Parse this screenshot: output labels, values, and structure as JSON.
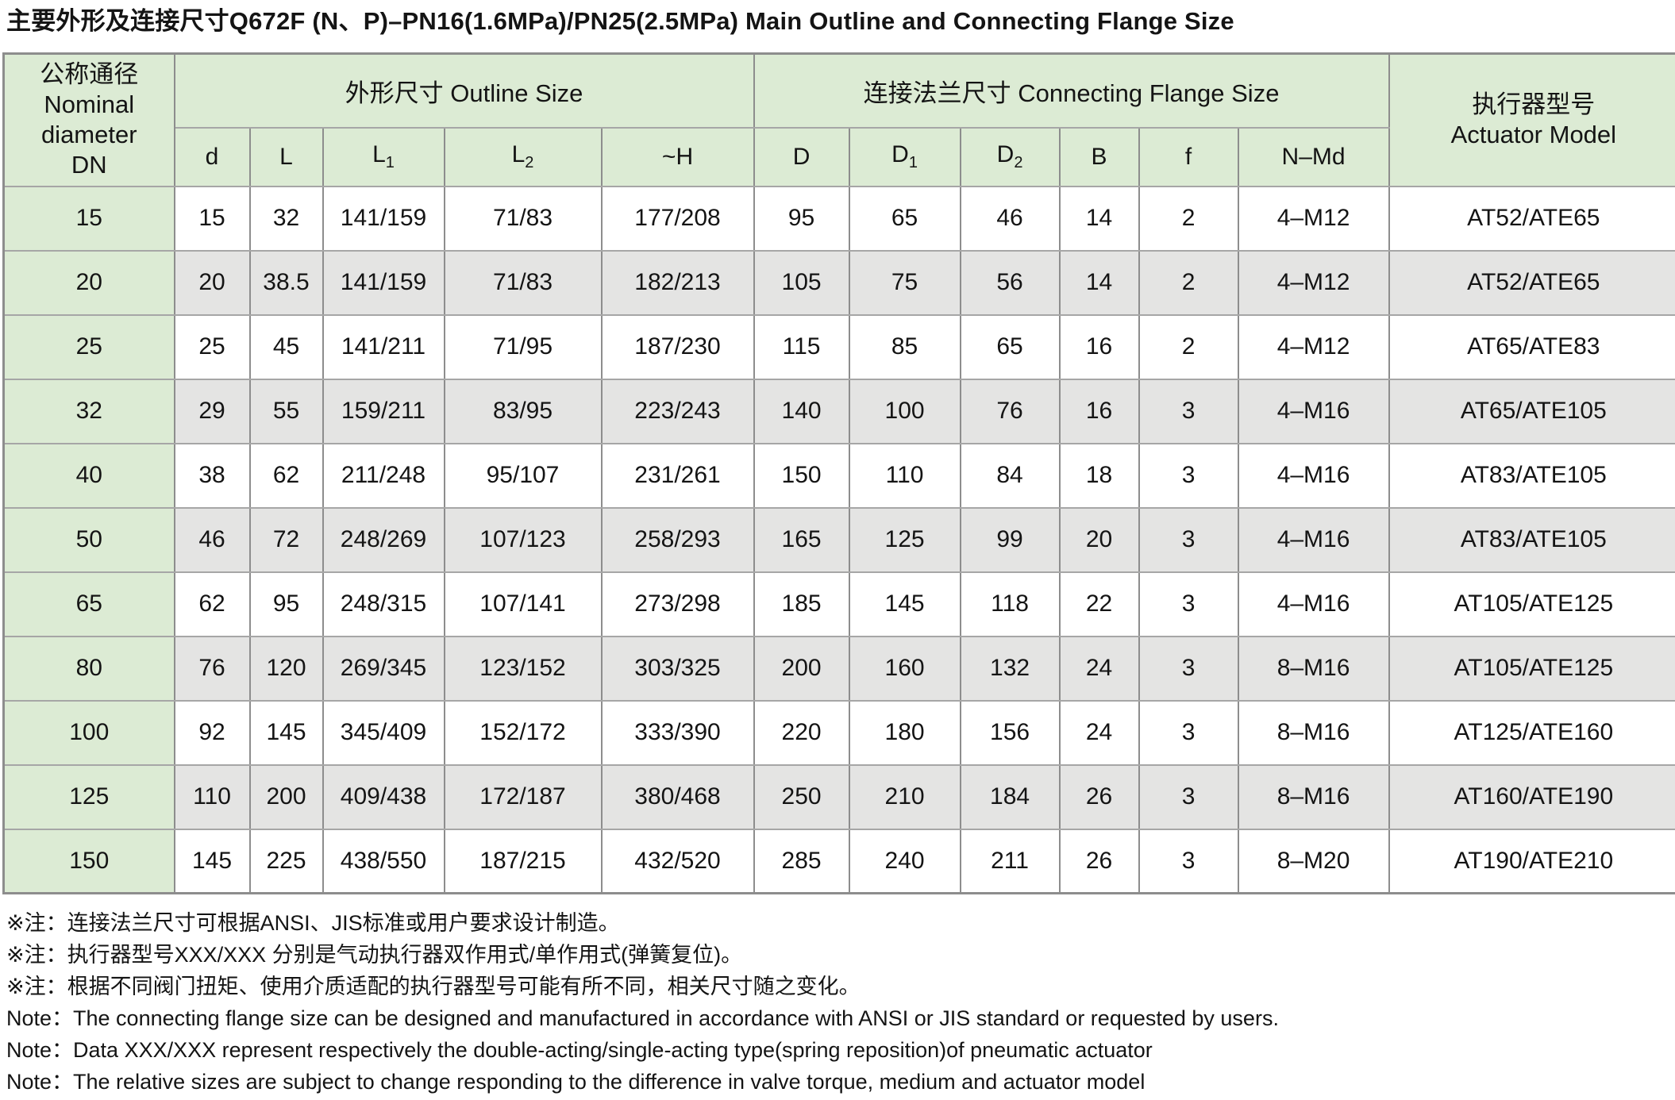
{
  "title": "主要外形及连接尺寸Q672F (N、P)–PN16(1.6MPa)/PN25(2.5MPa) Main Outline and Connecting Flange Size",
  "table": {
    "dn_header": "公称通径\nNominal\ndiameter\nDN",
    "group_outline": "外形尺寸 Outline Size",
    "group_flange": "连接法兰尺寸 Connecting Flange Size",
    "actuator_header": "执行器型号\nActuator Model",
    "sub_headers": [
      {
        "base": "d",
        "sub": ""
      },
      {
        "base": "L",
        "sub": ""
      },
      {
        "base": "L",
        "sub": "1"
      },
      {
        "base": "L",
        "sub": "2"
      },
      {
        "base": "~H",
        "sub": ""
      },
      {
        "base": "D",
        "sub": ""
      },
      {
        "base": "D",
        "sub": "1"
      },
      {
        "base": "D",
        "sub": "2"
      },
      {
        "base": "B",
        "sub": ""
      },
      {
        "base": "f",
        "sub": ""
      },
      {
        "base": "N–Md",
        "sub": ""
      }
    ],
    "rows": [
      {
        "dn": "15",
        "cells": [
          "15",
          "32",
          "141/159",
          "71/83",
          "177/208",
          "95",
          "65",
          "46",
          "14",
          "2",
          "4–M12",
          "AT52/ATE65"
        ]
      },
      {
        "dn": "20",
        "cells": [
          "20",
          "38.5",
          "141/159",
          "71/83",
          "182/213",
          "105",
          "75",
          "56",
          "14",
          "2",
          "4–M12",
          "AT52/ATE65"
        ]
      },
      {
        "dn": "25",
        "cells": [
          "25",
          "45",
          "141/211",
          "71/95",
          "187/230",
          "115",
          "85",
          "65",
          "16",
          "2",
          "4–M12",
          "AT65/ATE83"
        ]
      },
      {
        "dn": "32",
        "cells": [
          "29",
          "55",
          "159/211",
          "83/95",
          "223/243",
          "140",
          "100",
          "76",
          "16",
          "3",
          "4–M16",
          "AT65/ATE105"
        ]
      },
      {
        "dn": "40",
        "cells": [
          "38",
          "62",
          "211/248",
          "95/107",
          "231/261",
          "150",
          "110",
          "84",
          "18",
          "3",
          "4–M16",
          "AT83/ATE105"
        ]
      },
      {
        "dn": "50",
        "cells": [
          "46",
          "72",
          "248/269",
          "107/123",
          "258/293",
          "165",
          "125",
          "99",
          "20",
          "3",
          "4–M16",
          "AT83/ATE105"
        ]
      },
      {
        "dn": "65",
        "cells": [
          "62",
          "95",
          "248/315",
          "107/141",
          "273/298",
          "185",
          "145",
          "118",
          "22",
          "3",
          "4–M16",
          "AT105/ATE125"
        ]
      },
      {
        "dn": "80",
        "cells": [
          "76",
          "120",
          "269/345",
          "123/152",
          "303/325",
          "200",
          "160",
          "132",
          "24",
          "3",
          "8–M16",
          "AT105/ATE125"
        ]
      },
      {
        "dn": "100",
        "cells": [
          "92",
          "145",
          "345/409",
          "152/172",
          "333/390",
          "220",
          "180",
          "156",
          "24",
          "3",
          "8–M16",
          "AT125/ATE160"
        ]
      },
      {
        "dn": "125",
        "cells": [
          "110",
          "200",
          "409/438",
          "172/187",
          "380/468",
          "250",
          "210",
          "184",
          "26",
          "3",
          "8–M16",
          "AT160/ATE190"
        ]
      },
      {
        "dn": "150",
        "cells": [
          "145",
          "225",
          "438/550",
          "187/215",
          "432/520",
          "285",
          "240",
          "211",
          "26",
          "3",
          "8–M20",
          "AT190/ATE210"
        ]
      }
    ]
  },
  "notes": [
    "※注：连接法兰尺寸可根据ANSI、JIS标准或用户要求设计制造。",
    "※注：执行器型号XXX/XXX 分别是气动执行器双作用式/单作用式(弹簧复位)。",
    "※注：根据不同阀门扭矩、使用介质适配的执行器型号可能有所不同，相关尺寸随之变化。",
    "Note：The connecting flange size can be designed and manufactured in accordance with ANSI or JIS standard or requested by users.",
    "Note：Data XXX/XXX represent respectively the double-acting/single-acting type(spring reposition)of pneumatic actuator",
    "Note：The relative sizes are subject to change responding to the difference in valve torque, medium and actuator model"
  ],
  "colors": {
    "header_green": "#dcebd4",
    "row_alt": "#e4e4e3",
    "row_base": "#ffffff",
    "border": "#8d8d8d",
    "border_light": "#a6a6a6"
  }
}
